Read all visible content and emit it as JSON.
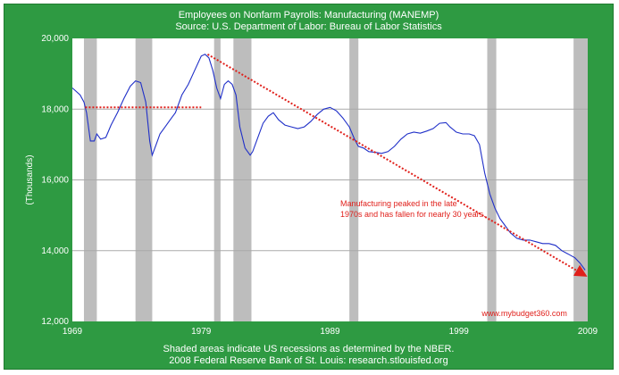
{
  "chart_data": {
    "type": "line",
    "title": "Employees on Nonfarm Payrolls: Manufacturing (MANEMP)",
    "subtitle": "Source: U.S. Department of Labor: Bureau of Labor Statistics",
    "ylabel": "(Thousands)",
    "xlabel": "",
    "xlim": [
      1969,
      2009
    ],
    "ylim": [
      12000,
      20000
    ],
    "x_ticks": [
      1969,
      1979,
      1989,
      1999,
      2009
    ],
    "x_tick_labels": [
      "1969",
      "1979",
      "1989",
      "1999",
      "2009"
    ],
    "y_ticks": [
      12000,
      14000,
      16000,
      18000,
      20000
    ],
    "y_tick_labels": [
      "12,000",
      "14,000",
      "16,000",
      "18,000",
      "20,000"
    ],
    "grid": true,
    "recessions": [
      [
        1969.9,
        1970.9
      ],
      [
        1973.9,
        1975.2
      ],
      [
        1980.0,
        1980.5
      ],
      [
        1981.5,
        1982.9
      ],
      [
        1990.5,
        1991.2
      ],
      [
        2001.2,
        2001.9
      ],
      [
        2007.9,
        2009.0
      ]
    ],
    "series": [
      {
        "color": "#1f2fc8",
        "x": [
          1969.0,
          1969.3,
          1969.6,
          1969.9,
          1970.1,
          1970.4,
          1970.7,
          1970.9,
          1971.2,
          1971.6,
          1972.0,
          1972.5,
          1973.0,
          1973.5,
          1973.9,
          1974.3,
          1974.7,
          1975.0,
          1975.2,
          1975.5,
          1975.8,
          1976.2,
          1976.6,
          1977.0,
          1977.5,
          1978.0,
          1978.5,
          1979.0,
          1979.3,
          1979.6,
          1979.9,
          1980.2,
          1980.5,
          1980.8,
          1981.1,
          1981.4,
          1981.7,
          1982.0,
          1982.4,
          1982.8,
          1983.0,
          1983.4,
          1983.8,
          1984.2,
          1984.6,
          1985.0,
          1985.5,
          1986.0,
          1986.5,
          1987.0,
          1987.5,
          1988.0,
          1988.5,
          1989.0,
          1989.5,
          1990.0,
          1990.5,
          1990.9,
          1991.2,
          1991.6,
          1992.0,
          1992.5,
          1993.0,
          1993.5,
          1994.0,
          1994.5,
          1995.0,
          1995.5,
          1996.0,
          1996.5,
          1997.0,
          1997.5,
          1998.0,
          1998.3,
          1998.8,
          1999.3,
          1999.8,
          2000.2,
          2000.6,
          2001.0,
          2001.4,
          2001.8,
          2002.2,
          2002.6,
          2003.0,
          2003.5,
          2004.0,
          2004.5,
          2005.0,
          2005.5,
          2006.0,
          2006.5,
          2007.0,
          2007.5,
          2008.0,
          2008.4,
          2008.8
        ],
        "values": [
          18600,
          18500,
          18400,
          18200,
          17900,
          17100,
          17100,
          17300,
          17150,
          17200,
          17550,
          17900,
          18300,
          18650,
          18800,
          18750,
          18200,
          17100,
          16700,
          17000,
          17300,
          17500,
          17700,
          17900,
          18400,
          18700,
          19100,
          19500,
          19550,
          19450,
          19100,
          18600,
          18300,
          18700,
          18800,
          18700,
          18400,
          17500,
          16900,
          16700,
          16800,
          17200,
          17600,
          17800,
          17900,
          17700,
          17550,
          17500,
          17450,
          17500,
          17650,
          17850,
          18000,
          18050,
          17950,
          17750,
          17500,
          17150,
          16950,
          16900,
          16800,
          16780,
          16750,
          16800,
          16950,
          17150,
          17300,
          17350,
          17320,
          17380,
          17450,
          17600,
          17620,
          17500,
          17350,
          17300,
          17300,
          17250,
          17000,
          16200,
          15600,
          15200,
          14900,
          14700,
          14500,
          14350,
          14300,
          14300,
          14250,
          14200,
          14200,
          14150,
          14000,
          13900,
          13800,
          13650,
          13450
        ]
      }
    ],
    "annotation_text": [
      "Manufacturing peaked in the late",
      "1970s and has fallen for nearly 30 years."
    ],
    "annotation_color": "#e0201b",
    "watermark": "www.mybudget360.com",
    "footer": [
      "Shaded areas indicate US recessions as determined by the NBER.",
      "2008 Federal Reserve Bank of St. Louis: research.stlouisfed.org"
    ],
    "colors": {
      "background": "#2e9a42",
      "plot_area": "#ffffff",
      "recession": "#bdbdbd",
      "grid": "#aaaaaa"
    }
  }
}
